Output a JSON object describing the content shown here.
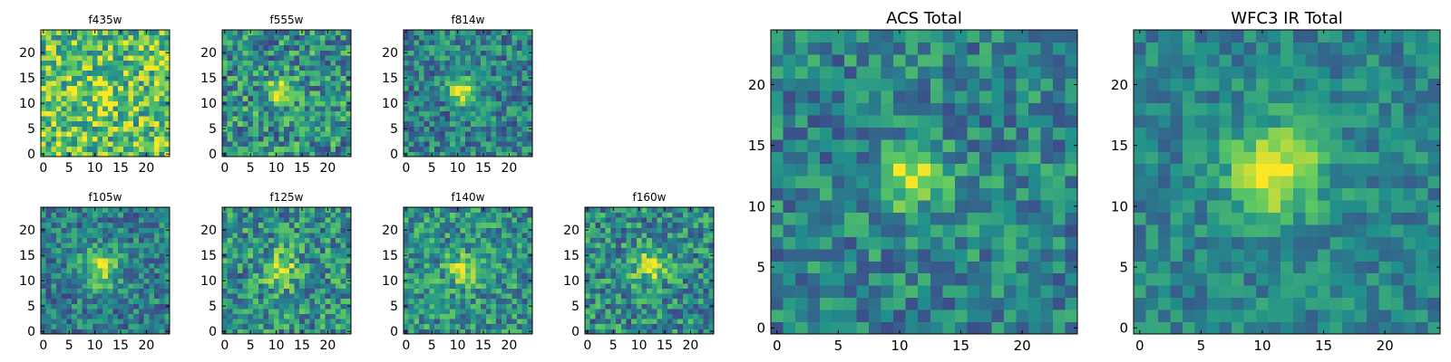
{
  "colors": {
    "background": "#ffffff",
    "axis": "#000000",
    "colormap": "viridis",
    "colormap_stops": [
      "#440154",
      "#3b528b",
      "#21918c",
      "#5ec962",
      "#fde725"
    ]
  },
  "chart_data": [
    {
      "id": "f435w",
      "type": "heatmap",
      "title": "f435w",
      "grid": false,
      "colormap": "viridis",
      "xlim": [
        -0.5,
        24.5
      ],
      "ylim": [
        -0.5,
        24.5
      ],
      "size": [
        25,
        25
      ],
      "xticks": [
        "0",
        "5",
        "10",
        "15",
        "20"
      ],
      "yticks": [
        "0",
        "5",
        "10",
        "15",
        "20"
      ],
      "peak": {
        "x": 11,
        "y": 12,
        "sigma": 2.2,
        "amplitude": 0.2
      },
      "background": 0.72,
      "noise": 0.32
    },
    {
      "id": "f555w",
      "type": "heatmap",
      "title": "f555w",
      "grid": false,
      "colormap": "viridis",
      "xlim": [
        -0.5,
        24.5
      ],
      "ylim": [
        -0.5,
        24.5
      ],
      "size": [
        25,
        25
      ],
      "xticks": [
        "0",
        "5",
        "10",
        "15",
        "20"
      ],
      "yticks": [
        "0",
        "5",
        "10",
        "15",
        "20"
      ],
      "peak": {
        "x": 11,
        "y": 12.5,
        "sigma": 1.8,
        "amplitude": 0.45
      },
      "background": 0.5,
      "noise": 0.3
    },
    {
      "id": "f814w",
      "type": "heatmap",
      "title": "f814w",
      "grid": false,
      "colormap": "viridis",
      "xlim": [
        -0.5,
        24.5
      ],
      "ylim": [
        -0.5,
        24.5
      ],
      "size": [
        25,
        25
      ],
      "xticks": [
        "0",
        "5",
        "10",
        "15",
        "20"
      ],
      "yticks": [
        "0",
        "5",
        "10",
        "15",
        "20"
      ],
      "peak": {
        "x": 11,
        "y": 12.5,
        "sigma": 1.7,
        "amplitude": 0.55
      },
      "background": 0.44,
      "noise": 0.24
    },
    {
      "id": "f105w",
      "type": "heatmap",
      "title": "f105w",
      "grid": false,
      "colormap": "viridis",
      "xlim": [
        -0.5,
        24.5
      ],
      "ylim": [
        -0.5,
        24.5
      ],
      "size": [
        25,
        25
      ],
      "xticks": [
        "0",
        "5",
        "10",
        "15",
        "20"
      ],
      "yticks": [
        "0",
        "5",
        "10",
        "15",
        "20"
      ],
      "peak": {
        "x": 11,
        "y": 12.5,
        "sigma": 2.6,
        "amplitude": 0.48
      },
      "background": 0.42,
      "noise": 0.22
    },
    {
      "id": "f125w",
      "type": "heatmap",
      "title": "f125w",
      "grid": false,
      "colormap": "viridis",
      "xlim": [
        -0.5,
        24.5
      ],
      "ylim": [
        -0.5,
        24.5
      ],
      "size": [
        25,
        25
      ],
      "xticks": [
        "0",
        "5",
        "10",
        "15",
        "20"
      ],
      "yticks": [
        "0",
        "5",
        "10",
        "15",
        "20"
      ],
      "peak": {
        "x": 11,
        "y": 12.5,
        "sigma": 2.2,
        "amplitude": 0.4
      },
      "background": 0.5,
      "noise": 0.28
    },
    {
      "id": "f140w",
      "type": "heatmap",
      "title": "f140w",
      "grid": false,
      "colormap": "viridis",
      "xlim": [
        -0.5,
        24.5
      ],
      "ylim": [
        -0.5,
        24.5
      ],
      "size": [
        25,
        25
      ],
      "xticks": [
        "0",
        "5",
        "10",
        "15",
        "20"
      ],
      "yticks": [
        "0",
        "5",
        "10",
        "15",
        "20"
      ],
      "peak": {
        "x": 11,
        "y": 12.5,
        "sigma": 2.0,
        "amplitude": 0.45
      },
      "background": 0.5,
      "noise": 0.26
    },
    {
      "id": "f160w",
      "type": "heatmap",
      "title": "f160w",
      "grid": false,
      "colormap": "viridis",
      "xlim": [
        -0.5,
        24.5
      ],
      "ylim": [
        -0.5,
        24.5
      ],
      "size": [
        25,
        25
      ],
      "xticks": [
        "0",
        "5",
        "10",
        "15",
        "20"
      ],
      "yticks": [
        "0",
        "5",
        "10",
        "15",
        "20"
      ],
      "peak": {
        "x": 12,
        "y": 13,
        "sigma": 2.4,
        "amplitude": 0.4
      },
      "background": 0.48,
      "noise": 0.27
    },
    {
      "id": "acs-total",
      "type": "heatmap",
      "title": "ACS Total",
      "grid": false,
      "colormap": "viridis",
      "xlim": [
        -0.5,
        24.5
      ],
      "ylim": [
        -0.5,
        24.5
      ],
      "size": [
        25,
        25
      ],
      "xticks": [
        "0",
        "5",
        "10",
        "15",
        "20"
      ],
      "yticks": [
        "0",
        "5",
        "10",
        "15",
        "20"
      ],
      "peak": {
        "x": 11,
        "y": 12.5,
        "sigma": 1.7,
        "amplitude": 0.55
      },
      "background": 0.45,
      "noise": 0.22
    },
    {
      "id": "wfc3-ir-total",
      "type": "heatmap",
      "title": "WFC3 IR Total",
      "grid": false,
      "colormap": "viridis",
      "xlim": [
        -0.5,
        24.5
      ],
      "ylim": [
        -0.5,
        24.5
      ],
      "size": [
        25,
        25
      ],
      "xticks": [
        "0",
        "5",
        "10",
        "15",
        "20"
      ],
      "yticks": [
        "0",
        "5",
        "10",
        "15",
        "20"
      ],
      "peak": {
        "x": 11,
        "y": 13,
        "sigma": 2.6,
        "amplitude": 0.55
      },
      "background": 0.45,
      "noise": 0.16
    }
  ]
}
